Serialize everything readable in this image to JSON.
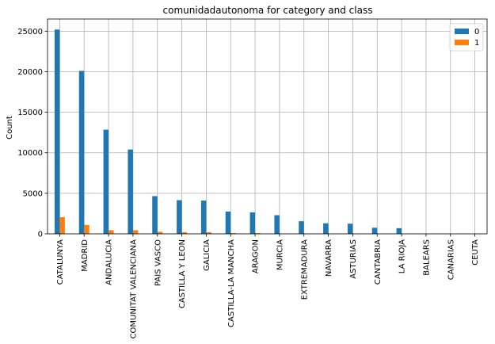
{
  "chart_data": {
    "type": "bar",
    "title": "comunidadautonoma for category and class",
    "xlabel": "",
    "ylabel": "Count",
    "ylim": [
      0,
      26500
    ],
    "yticks": [
      0,
      5000,
      10000,
      15000,
      20000,
      25000
    ],
    "ytick_labels": [
      "0",
      "5000",
      "10000",
      "15000",
      "20000",
      "25000"
    ],
    "grid": true,
    "legend_position": "top-right",
    "categories": [
      "CATALUNYA",
      "MADRID",
      "ANDALUCIA",
      "COMUNITAT VALENCIANA",
      "PAIS VASCO",
      "CASTILLA Y LEON",
      "GALICIA",
      "CASTILLA-LA MANCHA",
      "ARAGON",
      "MURCIA",
      "EXTREMADURA",
      "NAVARRA",
      "ASTURIAS",
      "CANTABRIA",
      "LA RIOJA",
      "BALEARS",
      "CANARIAS",
      "CEUTA"
    ],
    "series": [
      {
        "name": "0",
        "color": "#1f77b4",
        "values": [
          25200,
          20100,
          12850,
          10400,
          4650,
          4150,
          4100,
          2750,
          2650,
          2300,
          1550,
          1300,
          1250,
          750,
          700,
          0,
          0,
          0
        ]
      },
      {
        "name": "1",
        "color": "#ff7f0e",
        "values": [
          2050,
          1100,
          450,
          450,
          250,
          200,
          200,
          100,
          100,
          50,
          50,
          50,
          50,
          0,
          0,
          0,
          0,
          0
        ]
      }
    ]
  }
}
